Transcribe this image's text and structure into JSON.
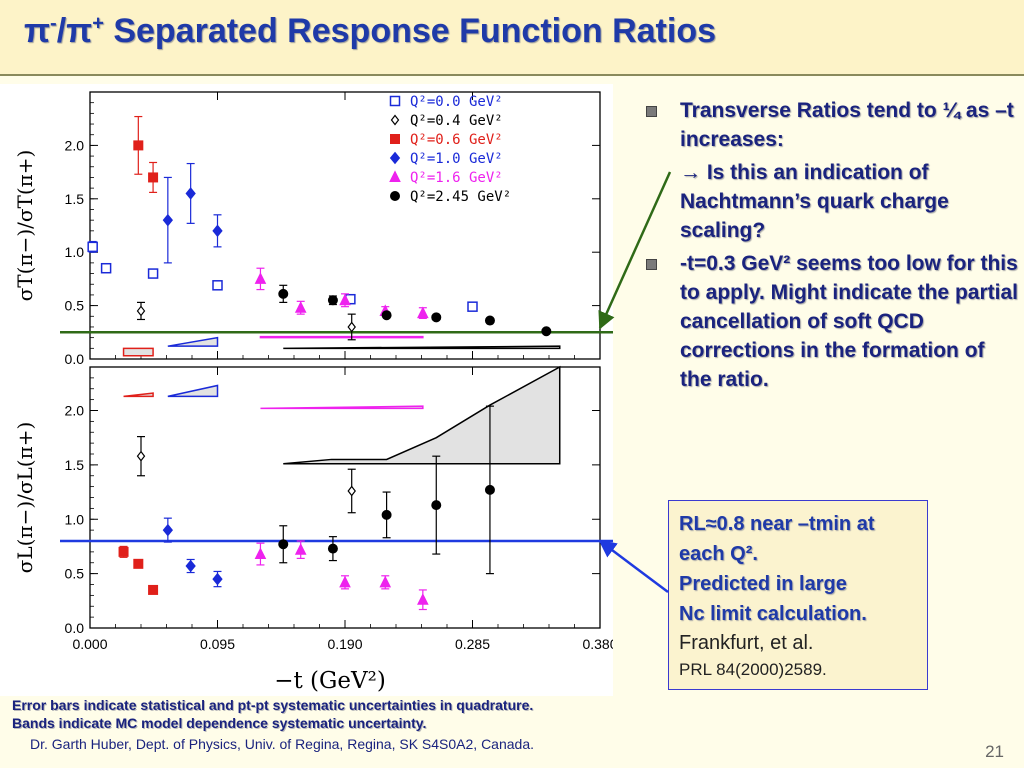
{
  "title": {
    "pi_minus": "π",
    "minus_sup": "-",
    "slash": "/",
    "pi_plus": "π",
    "plus_sup": "+",
    "text": " Separated Response Function Ratios"
  },
  "bullets": [
    {
      "text": "Transverse Ratios tend to ¼ as –t increases:"
    },
    {
      "text": "-t=0.3 GeV² seems too low for this to apply.  Might indicate the partial cancellation of soft QCD corrections in the formation of the ratio."
    }
  ],
  "sub_bullet": {
    "text": "→ Is this an indication of Nachtmann’s quark charge scaling?"
  },
  "rl_box": {
    "line1": "RL≈0.8 near –tmin at",
    "line2": "each Q².",
    "line3": "Predicted in large",
    "line4": "Nc limit calculation.",
    "ref1": "Frankfurt, et al.",
    "ref2": "PRL 84(2000)2589."
  },
  "notes": {
    "errors": "Error bars indicate statistical and pt-pt systematic uncertainties in quadrature.",
    "bands": "Bands indicate MC model dependence systematic uncertainty."
  },
  "footer": "Dr. Garth Huber, Dept. of Physics, Univ. of Regina, Regina, SK S4S0A2, Canada.",
  "slide_number": "21",
  "colors": {
    "title": "#1f3aa8",
    "red": "#e0201a",
    "blue": "#1a2ad8",
    "magenta": "#ee22ee",
    "green_line": "#2f6a17",
    "blue_line": "#1f3ae0"
  },
  "chart_data": [
    {
      "type": "scatter",
      "panel": "top",
      "ylabel": "σT(π−)/σT(π+)",
      "xlabel": "",
      "xlim": [
        0.0,
        0.38
      ],
      "ylim": [
        0.0,
        2.5
      ],
      "yticks": [
        "0.0",
        "0.5",
        "1.0",
        "1.5",
        "2.0"
      ],
      "reference_line": 0.25,
      "legend_position": "top-right",
      "series": [
        {
          "name": "Q²=0.0 GeV²",
          "color": "#1a2ad8",
          "marker": "open-square",
          "points": [
            [
              0.002,
              1.05,
              0.05
            ],
            [
              0.012,
              0.85,
              0.0
            ],
            [
              0.047,
              0.8,
              0.04
            ],
            [
              0.095,
              0.69,
              0.0
            ],
            [
              0.194,
              0.56,
              0.0
            ],
            [
              0.285,
              0.49,
              0.0
            ]
          ]
        },
        {
          "name": "Q²=0.4 GeV²",
          "color": "#000000",
          "marker": "open-diamond",
          "points": [
            [
              0.038,
              0.45,
              0.08
            ],
            [
              0.195,
              0.3,
              0.12
            ]
          ]
        },
        {
          "name": "Q²=0.6 GeV²",
          "color": "#e0201a",
          "marker": "filled-square",
          "points": [
            [
              0.036,
              2.0,
              0.27
            ],
            [
              0.047,
              1.7,
              0.14
            ]
          ]
        },
        {
          "name": "Q²=1.0 GeV²",
          "color": "#1a2ad8",
          "marker": "filled-diamond",
          "points": [
            [
              0.058,
              1.3,
              0.4
            ],
            [
              0.075,
              1.55,
              0.28
            ],
            [
              0.095,
              1.2,
              0.15
            ]
          ]
        },
        {
          "name": "Q²=1.6 GeV²",
          "color": "#ee22ee",
          "marker": "filled-triangle",
          "points": [
            [
              0.127,
              0.75,
              0.1
            ],
            [
              0.157,
              0.48,
              0.06
            ],
            [
              0.19,
              0.55,
              0.06
            ],
            [
              0.22,
              0.45,
              0.04
            ],
            [
              0.248,
              0.43,
              0.05
            ]
          ]
        },
        {
          "name": "Q²=2.45 GeV²",
          "color": "#000000",
          "marker": "filled-circle",
          "points": [
            [
              0.144,
              0.61,
              0.08
            ],
            [
              0.181,
              0.55,
              0.04
            ],
            [
              0.221,
              0.41,
              0.0
            ],
            [
              0.258,
              0.39,
              0.0
            ],
            [
              0.298,
              0.36,
              0.0
            ],
            [
              0.34,
              0.26,
              0.0
            ]
          ]
        }
      ],
      "bands": [
        {
          "color": "#e0201a",
          "x": [
            0.025,
            0.047
          ],
          "lower": [
            0.03,
            0.03
          ],
          "upper": [
            0.1,
            0.1
          ]
        },
        {
          "color": "#1a2ad8",
          "x": [
            0.058,
            0.095
          ],
          "lower": [
            0.12,
            0.12
          ],
          "upper": [
            0.12,
            0.2
          ]
        },
        {
          "color": "#ee22ee",
          "x": [
            0.127,
            0.248
          ],
          "lower": [
            0.2,
            0.2
          ],
          "upper": [
            0.21,
            0.21
          ]
        },
        {
          "color": "#000000",
          "x": [
            0.144,
            0.35
          ],
          "lower": [
            0.1,
            0.1
          ],
          "upper": [
            0.1,
            0.12
          ]
        }
      ]
    },
    {
      "type": "scatter",
      "panel": "bottom",
      "ylabel": "σL(π−)/σL(π+)",
      "xlabel": "−t  (GeV²)",
      "xlim": [
        0.0,
        0.38
      ],
      "ylim": [
        0.0,
        2.4
      ],
      "yticks": [
        "0.0",
        "0.5",
        "1.0",
        "1.5",
        "2.0"
      ],
      "xticks": [
        "0.000",
        "0.095",
        "0.190",
        "0.285",
        "0.380"
      ],
      "reference_line": 0.8,
      "series": [
        {
          "name": "Q²=0.4 GeV²",
          "color": "#000000",
          "marker": "open-diamond",
          "points": [
            [
              0.038,
              1.58,
              0.18
            ],
            [
              0.195,
              1.26,
              0.2
            ]
          ]
        },
        {
          "name": "Q²=0.6 GeV²",
          "color": "#e0201a",
          "marker": "filled-square",
          "points": [
            [
              0.025,
              0.7,
              0.05
            ],
            [
              0.036,
              0.59,
              0.0
            ],
            [
              0.047,
              0.35,
              0.0
            ]
          ]
        },
        {
          "name": "Q²=1.0 GeV²",
          "color": "#1a2ad8",
          "marker": "filled-diamond",
          "points": [
            [
              0.058,
              0.9,
              0.11
            ],
            [
              0.075,
              0.57,
              0.06
            ],
            [
              0.095,
              0.45,
              0.07
            ]
          ]
        },
        {
          "name": "Q²=1.6 GeV²",
          "color": "#ee22ee",
          "marker": "filled-triangle",
          "points": [
            [
              0.127,
              0.68,
              0.1
            ],
            [
              0.157,
              0.72,
              0.08
            ],
            [
              0.19,
              0.42,
              0.06
            ],
            [
              0.22,
              0.42,
              0.06
            ],
            [
              0.248,
              0.26,
              0.09
            ]
          ]
        },
        {
          "name": "Q²=2.45 GeV²",
          "color": "#000000",
          "marker": "filled-circle",
          "points": [
            [
              0.144,
              0.77,
              0.17
            ],
            [
              0.181,
              0.73,
              0.11
            ],
            [
              0.221,
              1.04,
              0.21
            ],
            [
              0.258,
              1.13,
              0.45
            ],
            [
              0.298,
              1.27,
              0.77
            ]
          ]
        }
      ],
      "bands": [
        {
          "color": "#e0201a",
          "x": [
            0.025,
            0.047
          ],
          "lower": [
            2.13,
            2.13
          ],
          "upper": [
            2.13,
            2.16
          ]
        },
        {
          "color": "#1a2ad8",
          "x": [
            0.058,
            0.095
          ],
          "lower": [
            2.13,
            2.13
          ],
          "upper": [
            2.13,
            2.23
          ]
        },
        {
          "color": "#ee22ee",
          "x": [
            0.127,
            0.248
          ],
          "lower": [
            2.02,
            2.02
          ],
          "upper": [
            2.02,
            2.04
          ]
        },
        {
          "color": "#000000",
          "x": [
            0.144,
            0.18,
            0.221,
            0.258,
            0.298,
            0.35
          ],
          "lower": [
            1.51,
            1.51,
            1.51,
            1.51,
            1.51,
            1.51
          ],
          "upper": [
            1.51,
            1.55,
            1.55,
            1.75,
            2.05,
            2.4
          ]
        }
      ]
    }
  ]
}
